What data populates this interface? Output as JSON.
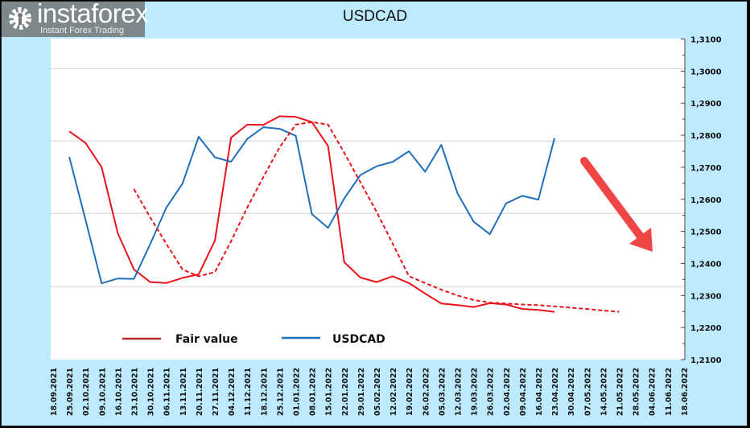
{
  "chart_data": {
    "type": "line",
    "title": "USDCAD",
    "xlabel": "",
    "ylabel": "",
    "ylim": [
      1.21,
      1.31
    ],
    "y_ticks": [
      "1,2100",
      "1,2200",
      "1,2300",
      "1,2400",
      "1,2500",
      "1,2600",
      "1,2700",
      "1,2800",
      "1,2900",
      "1,3000",
      "1,3100"
    ],
    "y_axis_position": "right",
    "grid": true,
    "legend_position": "bottom-left",
    "categories": [
      "18.09.2021",
      "25.09.2021",
      "02.10.2021",
      "09.10.2021",
      "16.10.2021",
      "23.10.2021",
      "30.10.2021",
      "06.11.2021",
      "13.11.2021",
      "20.11.2021",
      "27.11.2021",
      "04.12.2021",
      "11.12.2021",
      "18.12.2021",
      "25.12.2021",
      "01.01.2022",
      "08.01.2022",
      "15.01.2022",
      "22.01.2022",
      "29.01.2022",
      "05.02.2022",
      "12.02.2022",
      "19.02.2022",
      "26.02.2022",
      "05.03.2022",
      "12.03.2022",
      "19.03.2022",
      "26.03.2022",
      "02.04.2022",
      "09.04.2022",
      "16.04.2022",
      "23.04.2022",
      "30.04.2022",
      "07.05.2022",
      "14.05.2022",
      "21.05.2022",
      "28.05.2022",
      "04.06.2022",
      "11.06.2022",
      "18.06.2022"
    ],
    "series": [
      {
        "name": "Fair value",
        "color": "#e8141b",
        "style": "solid",
        "values": [
          null,
          1.2812,
          1.2776,
          1.27,
          1.2494,
          1.2381,
          1.2342,
          1.2339,
          1.2355,
          1.2366,
          1.2471,
          1.2792,
          1.2833,
          1.2832,
          1.2859,
          1.2857,
          1.2841,
          1.2766,
          1.2404,
          1.2356,
          1.2342,
          1.236,
          1.2339,
          1.2306,
          1.2275,
          1.227,
          1.2264,
          1.2276,
          1.2272,
          1.2258,
          1.2255,
          1.2249,
          null,
          null,
          null,
          null,
          null,
          null,
          null,
          null
        ]
      },
      {
        "name": "USDCAD",
        "color": "#1f6fba",
        "style": "solid",
        "values": [
          null,
          1.2732,
          1.2537,
          1.2338,
          1.2353,
          1.2352,
          1.246,
          1.2574,
          1.2649,
          1.2795,
          1.2731,
          1.2717,
          1.2788,
          1.2825,
          1.282,
          1.2798,
          1.2554,
          1.2511,
          1.2603,
          1.2676,
          1.2703,
          1.2717,
          1.275,
          1.2686,
          1.277,
          1.2619,
          1.253,
          1.2491,
          1.2587,
          1.2611,
          1.2599,
          1.2791,
          null,
          null,
          null,
          null,
          null,
          null,
          null,
          null
        ]
      },
      {
        "color": "#e8141b",
        "style": "dashed",
        "values": [
          null,
          null,
          null,
          null,
          null,
          1.2632,
          1.2544,
          1.2461,
          1.2381,
          1.236,
          1.2373,
          1.2469,
          1.2574,
          1.267,
          1.2762,
          1.2833,
          1.2841,
          1.2833,
          1.2745,
          1.2653,
          1.2561,
          1.2461,
          1.236,
          1.2339,
          1.2318,
          1.23,
          1.2286,
          1.2278,
          1.2275,
          1.2272,
          1.227,
          1.2266,
          1.2262,
          1.2258,
          1.2253,
          1.2249,
          null,
          null,
          null,
          null
        ]
      }
    ],
    "annotations": [
      {
        "type": "arrow",
        "direction": "down-right",
        "color": "#f04545"
      }
    ]
  },
  "logo": {
    "name": "instaforex",
    "tagline": "Instant Forex Trading"
  }
}
